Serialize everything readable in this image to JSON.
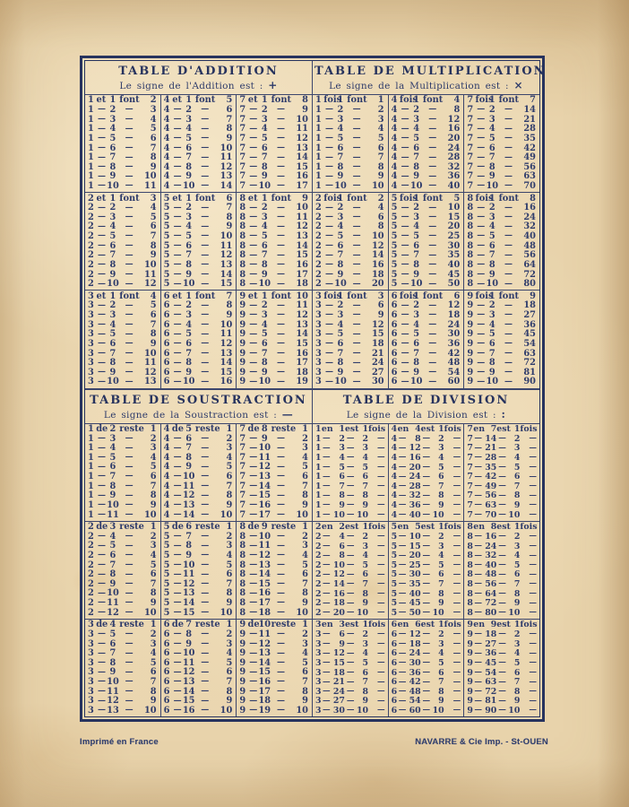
{
  "page": {
    "footer_left": "Imprimé en France",
    "footer_right": "NAVARRE & Cie Imp. - St-OUEN"
  },
  "colors": {
    "ink": "#2f3c6b",
    "paper": "#e8d3ab"
  },
  "tables": [
    {
      "id": "addition",
      "title": "TABLE D'ADDITION",
      "subtitle": "Le signe de l'Addition est :",
      "sign": "+",
      "cols": 5,
      "bands": [
        [
          [
            "1 et 1 font 2",
            "1 — 2 — 3",
            "1 — 3 — 4",
            "1 — 4 — 5",
            "1 — 5 — 6",
            "1 — 6 — 7",
            "1 — 7 — 8",
            "1 — 8 — 9",
            "1 — 9 — 10",
            "1 — 10 — 11"
          ],
          [
            "4 et 1 font 5",
            "4 — 2 — 6",
            "4 — 3 — 7",
            "4 — 4 — 8",
            "4 — 5 — 9",
            "4 — 6 — 10",
            "4 — 7 — 11",
            "4 — 8 — 12",
            "4 — 9 — 13",
            "4 — 10 — 14"
          ],
          [
            "7 et 1 font 8",
            "7 — 2 — 9",
            "7 — 3 — 10",
            "7 — 4 — 11",
            "7 — 5 — 12",
            "7 — 6 — 13",
            "7 — 7 — 14",
            "7 — 8 — 15",
            "7 — 9 — 16",
            "7 — 10 — 17"
          ]
        ],
        [
          [
            "2 et 1 font 3",
            "2 — 2 — 4",
            "2 — 3 — 5",
            "2 — 4 — 6",
            "2 — 5 — 7",
            "2 — 6 — 8",
            "2 — 7 — 9",
            "2 — 8 — 10",
            "2 — 9 — 11",
            "2 — 10 — 12"
          ],
          [
            "5 et 1 font 6",
            "5 — 2 — 7",
            "5 — 3 — 8",
            "5 — 4 — 9",
            "5 — 5 — 10",
            "5 — 6 — 11",
            "5 — 7 — 12",
            "5 — 8 — 13",
            "5 — 9 — 14",
            "5 — 10 — 15"
          ],
          [
            "8 et 1 font 9",
            "8 — 2 — 10",
            "8 — 3 — 11",
            "8 — 4 — 12",
            "8 — 5 — 13",
            "8 — 6 — 14",
            "8 — 7 — 15",
            "8 — 8 — 16",
            "8 — 9 — 17",
            "8 — 10 — 18"
          ]
        ],
        [
          [
            "3 et 1 font 4",
            "3 — 2 — 5",
            "3 — 3 — 6",
            "3 — 4 — 7",
            "3 — 5 — 8",
            "3 — 6 — 9",
            "3 — 7 — 10",
            "3 — 8 — 11",
            "3 — 9 — 12",
            "3 — 10 — 13"
          ],
          [
            "6 et 1 font 7",
            "6 — 2 — 8",
            "6 — 3 — 9",
            "6 — 4 — 10",
            "6 — 5 — 11",
            "6 — 6 — 12",
            "6 — 7 — 13",
            "6 — 8 — 14",
            "6 — 9 — 15",
            "6 — 10 — 16"
          ],
          [
            "9 et 1 font 10",
            "9 — 2 — 11",
            "9 — 3 — 12",
            "9 — 4 — 13",
            "9 — 5 — 14",
            "9 — 6 — 15",
            "9 — 7 — 16",
            "9 — 8 — 17",
            "9 — 9 — 18",
            "9 — 10 — 19"
          ]
        ]
      ]
    },
    {
      "id": "multiplication",
      "title": "TABLE DE MULTIPLICATION",
      "subtitle": "Le signe de la Multiplication est :",
      "sign": "×",
      "cols": 5,
      "bands": [
        [
          [
            "1 fois 1 font 1",
            "1 — 2 — 2",
            "1 — 3 — 3",
            "1 — 4 — 4",
            "1 — 5 — 5",
            "1 — 6 — 6",
            "1 — 7 — 7",
            "1 — 8 — 8",
            "1 — 9 — 9",
            "1 — 10 — 10"
          ],
          [
            "4 fois 1 font 4",
            "4 — 2 — 8",
            "4 — 3 — 12",
            "4 — 4 — 16",
            "4 — 5 — 20",
            "4 — 6 — 24",
            "4 — 7 — 28",
            "4 — 8 — 32",
            "4 — 9 — 36",
            "4 — 10 — 40"
          ],
          [
            "7 fois 1 font 7",
            "7 — 2 — 14",
            "7 — 3 — 21",
            "7 — 4 — 28",
            "7 — 5 — 35",
            "7 — 6 — 42",
            "7 — 7 — 49",
            "7 — 8 — 56",
            "7 — 9 — 63",
            "7 — 10 — 70"
          ]
        ],
        [
          [
            "2 fois 1 font 2",
            "2 — 2 — 4",
            "2 — 3 — 6",
            "2 — 4 — 8",
            "2 — 5 — 10",
            "2 — 6 — 12",
            "2 — 7 — 14",
            "2 — 8 — 16",
            "2 — 9 — 18",
            "2 — 10 — 20"
          ],
          [
            "5 fois 1 font 5",
            "5 — 2 — 10",
            "5 — 3 — 15",
            "5 — 4 — 20",
            "5 — 5 — 25",
            "5 — 6 — 30",
            "5 — 7 — 35",
            "5 — 8 — 40",
            "5 — 9 — 45",
            "5 — 10 — 50"
          ],
          [
            "8 fois 1 font 8",
            "8 — 2 — 16",
            "8 — 3 — 24",
            "8 — 4 — 32",
            "8 — 5 — 40",
            "8 — 6 — 48",
            "8 — 7 — 56",
            "8 — 8 — 64",
            "8 — 9 — 72",
            "8 — 10 — 80"
          ]
        ],
        [
          [
            "3 fois 1 font 3",
            "3 — 2 — 6",
            "3 — 3 — 9",
            "3 — 4 — 12",
            "3 — 5 — 15",
            "3 — 6 — 18",
            "3 — 7 — 21",
            "3 — 8 — 24",
            "3 — 9 — 27",
            "3 — 10 — 30"
          ],
          [
            "6 fois 1 font 6",
            "6 — 2 — 12",
            "6 — 3 — 18",
            "6 — 4 — 24",
            "6 — 5 — 30",
            "6 — 6 — 36",
            "6 — 7 — 42",
            "6 — 8 — 48",
            "6 — 9 — 54",
            "6 — 10 — 60"
          ],
          [
            "9 fois 1 font 9",
            "9 — 2 — 18",
            "9 — 3 — 27",
            "9 — 4 — 36",
            "9 — 5 — 45",
            "9 — 6 — 54",
            "9 — 7 — 63",
            "9 — 8 — 72",
            "9 — 9 — 81",
            "9 — 10 — 90"
          ]
        ]
      ]
    },
    {
      "id": "soustraction",
      "title": "TABLE DE SOUSTRACTION",
      "subtitle": "Le signe de la Soustraction est :",
      "sign": "—",
      "cols": 5,
      "bands": [
        [
          [
            "1 de 2 reste 1",
            "1 — 3 — 2",
            "1 — 4 — 3",
            "1 — 5 — 4",
            "1 — 6 — 5",
            "1 — 7 — 6",
            "1 — 8 — 7",
            "1 — 9 — 8",
            "1 — 10 — 9",
            "1 — 11 — 10"
          ],
          [
            "4 de 5 reste 1",
            "4 — 6 — 2",
            "4 — 7 — 3",
            "4 — 8 — 4",
            "4 — 9 — 5",
            "4 — 10 — 6",
            "4 — 11 — 7",
            "4 — 12 — 8",
            "4 — 13 — 9",
            "4 — 14 — 10"
          ],
          [
            "7 de 8 reste 1",
            "7 — 9 — 2",
            "7 — 10 — 3",
            "7 — 11 — 4",
            "7 — 12 — 5",
            "7 — 13 — 6",
            "7 — 14 — 7",
            "7 — 15 — 8",
            "7 — 16 — 9",
            "7 — 17 — 10"
          ]
        ],
        [
          [
            "2 de 3 reste 1",
            "2 — 4 — 2",
            "2 — 5 — 3",
            "2 — 6 — 4",
            "2 — 7 — 5",
            "2 — 8 — 6",
            "2 — 9 — 7",
            "2 — 10 — 8",
            "2 — 11 — 9",
            "2 — 12 — 10"
          ],
          [
            "5 de 6 reste 1",
            "5 — 7 — 2",
            "5 — 8 — 3",
            "5 — 9 — 4",
            "5 — 10 — 5",
            "5 — 11 — 6",
            "5 — 12 — 7",
            "5 — 13 — 8",
            "5 — 14 — 9",
            "5 — 15 — 10"
          ],
          [
            "8 de 9 reste 1",
            "8 — 10 — 2",
            "8 — 11 — 3",
            "8 — 12 — 4",
            "8 — 13 — 5",
            "8 — 14 — 6",
            "8 — 15 — 7",
            "8 — 16 — 8",
            "8 — 17 — 9",
            "8 — 18 — 10"
          ]
        ],
        [
          [
            "3 de 4 reste 1",
            "3 — 5 — 2",
            "3 — 6 — 3",
            "3 — 7 — 4",
            "3 — 8 — 5",
            "3 — 9 — 6",
            "3 — 10 — 7",
            "3 — 11 — 8",
            "3 — 12 — 9",
            "3 — 13 — 10"
          ],
          [
            "6 de 7 reste 1",
            "6 — 8 — 2",
            "6 — 9 — 3",
            "6 — 10 — 4",
            "6 — 11 — 5",
            "6 — 12 — 6",
            "6 — 13 — 7",
            "6 — 14 — 8",
            "6 — 15 — 9",
            "6 — 16 — 10"
          ],
          [
            "9 de 10 reste 1",
            "9 — 11 — 2",
            "9 — 12 — 3",
            "9 — 13 — 4",
            "9 — 14 — 5",
            "9 — 15 — 6",
            "9 — 16 — 7",
            "9 — 17 — 8",
            "9 — 18 — 9",
            "9 — 19 — 10"
          ]
        ]
      ]
    },
    {
      "id": "division",
      "title": "TABLE DE DIVISION",
      "subtitle": "Le signe de la Division est :",
      "sign": ":",
      "cols": 6,
      "bands": [
        [
          [
            "1 en 1 est 1 fois",
            "1 — 2 — 2 —",
            "1 — 3 — 3 —",
            "1 — 4 — 4 —",
            "1 — 5 — 5 —",
            "1 — 6 — 6 —",
            "1 — 7 — 7 —",
            "1 — 8 — 8 —",
            "1 — 9 — 9 —",
            "1 — 10 — 10 —"
          ],
          [
            "4 en 4 est 1 fois",
            "4 — 8 — 2 —",
            "4 — 12 — 3 —",
            "4 — 16 — 4 —",
            "4 — 20 — 5 —",
            "4 — 24 — 6 —",
            "4 — 28 — 7 —",
            "4 — 32 — 8 —",
            "4 — 36 — 9 —",
            "4 — 40 — 10 —"
          ],
          [
            "7 en 7 est 1 fois",
            "7 — 14 — 2 —",
            "7 — 21 — 3 —",
            "7 — 28 — 4 —",
            "7 — 35 — 5 —",
            "7 — 42 — 6 —",
            "7 — 49 — 7 —",
            "7 — 56 — 8 —",
            "7 — 63 — 9 —",
            "7 — 70 — 10 —"
          ]
        ],
        [
          [
            "2 en 2 est 1 fois",
            "2 — 4 — 2 —",
            "2 — 6 — 3 —",
            "2 — 8 — 4 —",
            "2 — 10 — 5 —",
            "2 — 12 — 6 —",
            "2 — 14 — 7 —",
            "2 — 16 — 8 —",
            "2 — 18 — 9 —",
            "2 — 20 — 10 —"
          ],
          [
            "5 en 5 est 1 fois",
            "5 — 10 — 2 —",
            "5 — 15 — 3 —",
            "5 — 20 — 4 —",
            "5 — 25 — 5 —",
            "5 — 30 — 6 —",
            "5 — 35 — 7 —",
            "5 — 40 — 8 —",
            "5 — 45 — 9 —",
            "5 — 50 — 10 —"
          ],
          [
            "8 en 8 est 1 fois",
            "8 — 16 — 2 —",
            "8 — 24 — 3 —",
            "8 — 32 — 4 —",
            "8 — 40 — 5 —",
            "8 — 48 — 6 —",
            "8 — 56 — 7 —",
            "8 — 64 — 8 —",
            "8 — 72 — 9 —",
            "8 — 80 — 10 —"
          ]
        ],
        [
          [
            "3 en 3 est 1 fois",
            "3 — 6 — 2 —",
            "3 — 9 — 3 —",
            "3 — 12 — 4 —",
            "3 — 15 — 5 —",
            "3 — 18 — 6 —",
            "3 — 21 — 7 —",
            "3 — 24 — 8 —",
            "3 — 27 — 9 —",
            "3 — 30 — 10 —"
          ],
          [
            "6 en 6 est 1 fois",
            "6 — 12 — 2 —",
            "6 — 18 — 3 —",
            "6 — 24 — 4 —",
            "6 — 30 — 5 —",
            "6 — 36 — 6 —",
            "6 — 42 — 7 —",
            "6 — 48 — 8 —",
            "6 — 54 — 9 —",
            "6 — 60 — 10 —"
          ],
          [
            "9 en 9 est 1 fois",
            "9 — 18 — 2 —",
            "9 — 27 — 3 —",
            "9 — 36 — 4 —",
            "9 — 45 — 5 —",
            "9 — 54 — 6 —",
            "9 — 63 — 7 —",
            "9 — 72 — 8 —",
            "9 — 81 — 9 —",
            "9 — 90 — 10 —"
          ]
        ]
      ]
    }
  ]
}
